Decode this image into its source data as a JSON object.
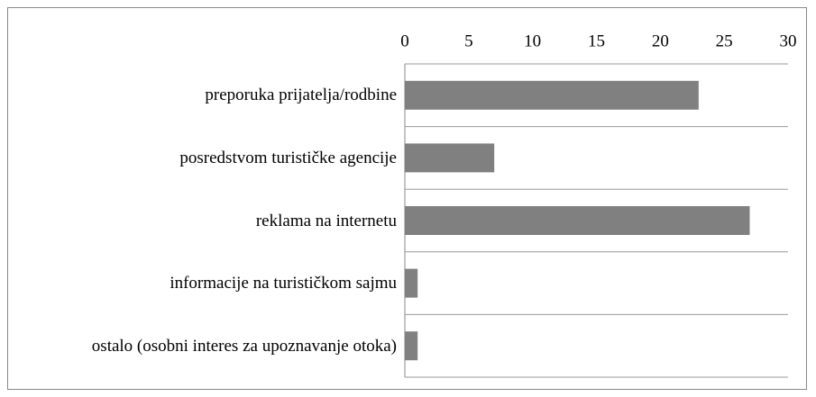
{
  "chart_data": {
    "type": "bar",
    "orientation": "horizontal",
    "categories": [
      "preporuka prijatelja/rodbine",
      "posredstvom turističke agencije",
      "reklama na internetu",
      "informacije na turističkom sajmu",
      "ostalo (osobni interes za upoznavanje otoka)"
    ],
    "values": [
      23,
      7,
      27,
      1,
      1
    ],
    "color": "#808080",
    "xlim": [
      0,
      30
    ],
    "xticks": [
      0,
      5,
      10,
      15,
      20,
      25,
      30
    ],
    "grid": true
  }
}
